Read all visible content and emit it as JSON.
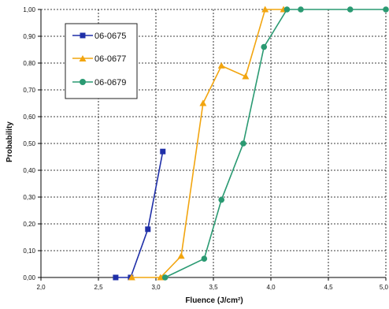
{
  "chart_data": {
    "type": "line",
    "xlabel": "Fluence  (J/cm²)",
    "ylabel": "Probability",
    "xlim": [
      2.0,
      5.0
    ],
    "ylim": [
      0.0,
      1.0
    ],
    "grid": true,
    "legend_position": "top-left",
    "x_ticks": [
      2.0,
      2.5,
      3.0,
      3.5,
      4.0,
      4.5,
      5.0
    ],
    "x_tick_labels": [
      "2,0",
      "2,5",
      "3,0",
      "3,5",
      "4,0",
      "4,5",
      "5,0"
    ],
    "y_ticks": [
      0.0,
      0.1,
      0.2,
      0.3,
      0.4,
      0.5,
      0.6,
      0.7,
      0.8,
      0.9,
      1.0
    ],
    "y_tick_labels": [
      "0,00",
      "0,10",
      "0,20",
      "0,30",
      "0,40",
      "0,50",
      "0,60",
      "0,70",
      "0,80",
      "0,90",
      "1,00"
    ],
    "series": [
      {
        "name": "06-0675",
        "color": "#1f2fa8",
        "marker": "square",
        "points": [
          [
            2.65,
            0.0
          ],
          [
            2.78,
            0.0
          ],
          [
            2.93,
            0.18
          ],
          [
            3.06,
            0.47
          ]
        ]
      },
      {
        "name": "06-0677",
        "color": "#f2a50f",
        "marker": "triangle",
        "points": [
          [
            2.79,
            0.0
          ],
          [
            3.04,
            0.0
          ],
          [
            3.22,
            0.08
          ],
          [
            3.41,
            0.65
          ],
          [
            3.57,
            0.79
          ],
          [
            3.78,
            0.75
          ],
          [
            3.95,
            1.0
          ],
          [
            4.11,
            1.0
          ]
        ]
      },
      {
        "name": "06-0679",
        "color": "#2a9a72",
        "marker": "circle",
        "points": [
          [
            3.08,
            0.0
          ],
          [
            3.42,
            0.07
          ],
          [
            3.57,
            0.29
          ],
          [
            3.76,
            0.5
          ],
          [
            3.94,
            0.86
          ],
          [
            4.14,
            1.0
          ],
          [
            4.26,
            1.0
          ],
          [
            4.69,
            1.0
          ],
          [
            5.0,
            1.0
          ]
        ]
      }
    ]
  }
}
